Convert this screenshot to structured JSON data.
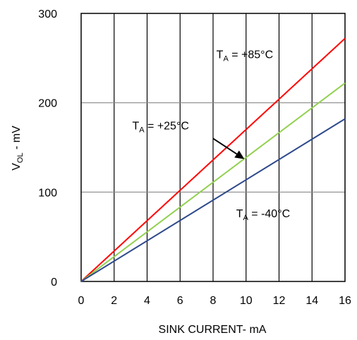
{
  "chart_data": {
    "type": "line",
    "xlabel": "SINK CURRENT- mA",
    "ylabel_main": "V",
    "ylabel_sub": "OL",
    "ylabel_rest": " - mV",
    "xlim": [
      0,
      16
    ],
    "ylim": [
      0,
      300
    ],
    "x_ticks": [
      "0",
      "2",
      "4",
      "6",
      "8",
      "10",
      "12",
      "14",
      "16"
    ],
    "y_ticks": [
      "0",
      "100",
      "200",
      "300"
    ],
    "x_tick_values": [
      0,
      2,
      4,
      6,
      8,
      10,
      12,
      14,
      16
    ],
    "y_tick_values": [
      0,
      100,
      200,
      300
    ],
    "grid": true,
    "series": [
      {
        "color": "#ff0000",
        "x": [
          0,
          16
        ],
        "y": [
          0,
          272
        ]
      },
      {
        "color": "#92d050",
        "x": [
          0,
          16
        ],
        "y": [
          0,
          222
        ]
      },
      {
        "color": "#2e4a8c",
        "x": [
          0,
          16
        ],
        "y": [
          0,
          182
        ]
      }
    ],
    "annotations": [
      {
        "main": "T",
        "sub": "A",
        "rest": " = +85°C",
        "x": 8.2,
        "y": 250
      },
      {
        "main": "T",
        "sub": "A",
        "rest": " = +25°C",
        "x": 3.1,
        "y": 170
      },
      {
        "main": "T",
        "sub": "A",
        "rest": " = -40°C",
        "x": 9.4,
        "y": 72
      }
    ],
    "arrow": {
      "from": [
        8.0,
        160
      ],
      "to": [
        9.9,
        137
      ]
    }
  }
}
